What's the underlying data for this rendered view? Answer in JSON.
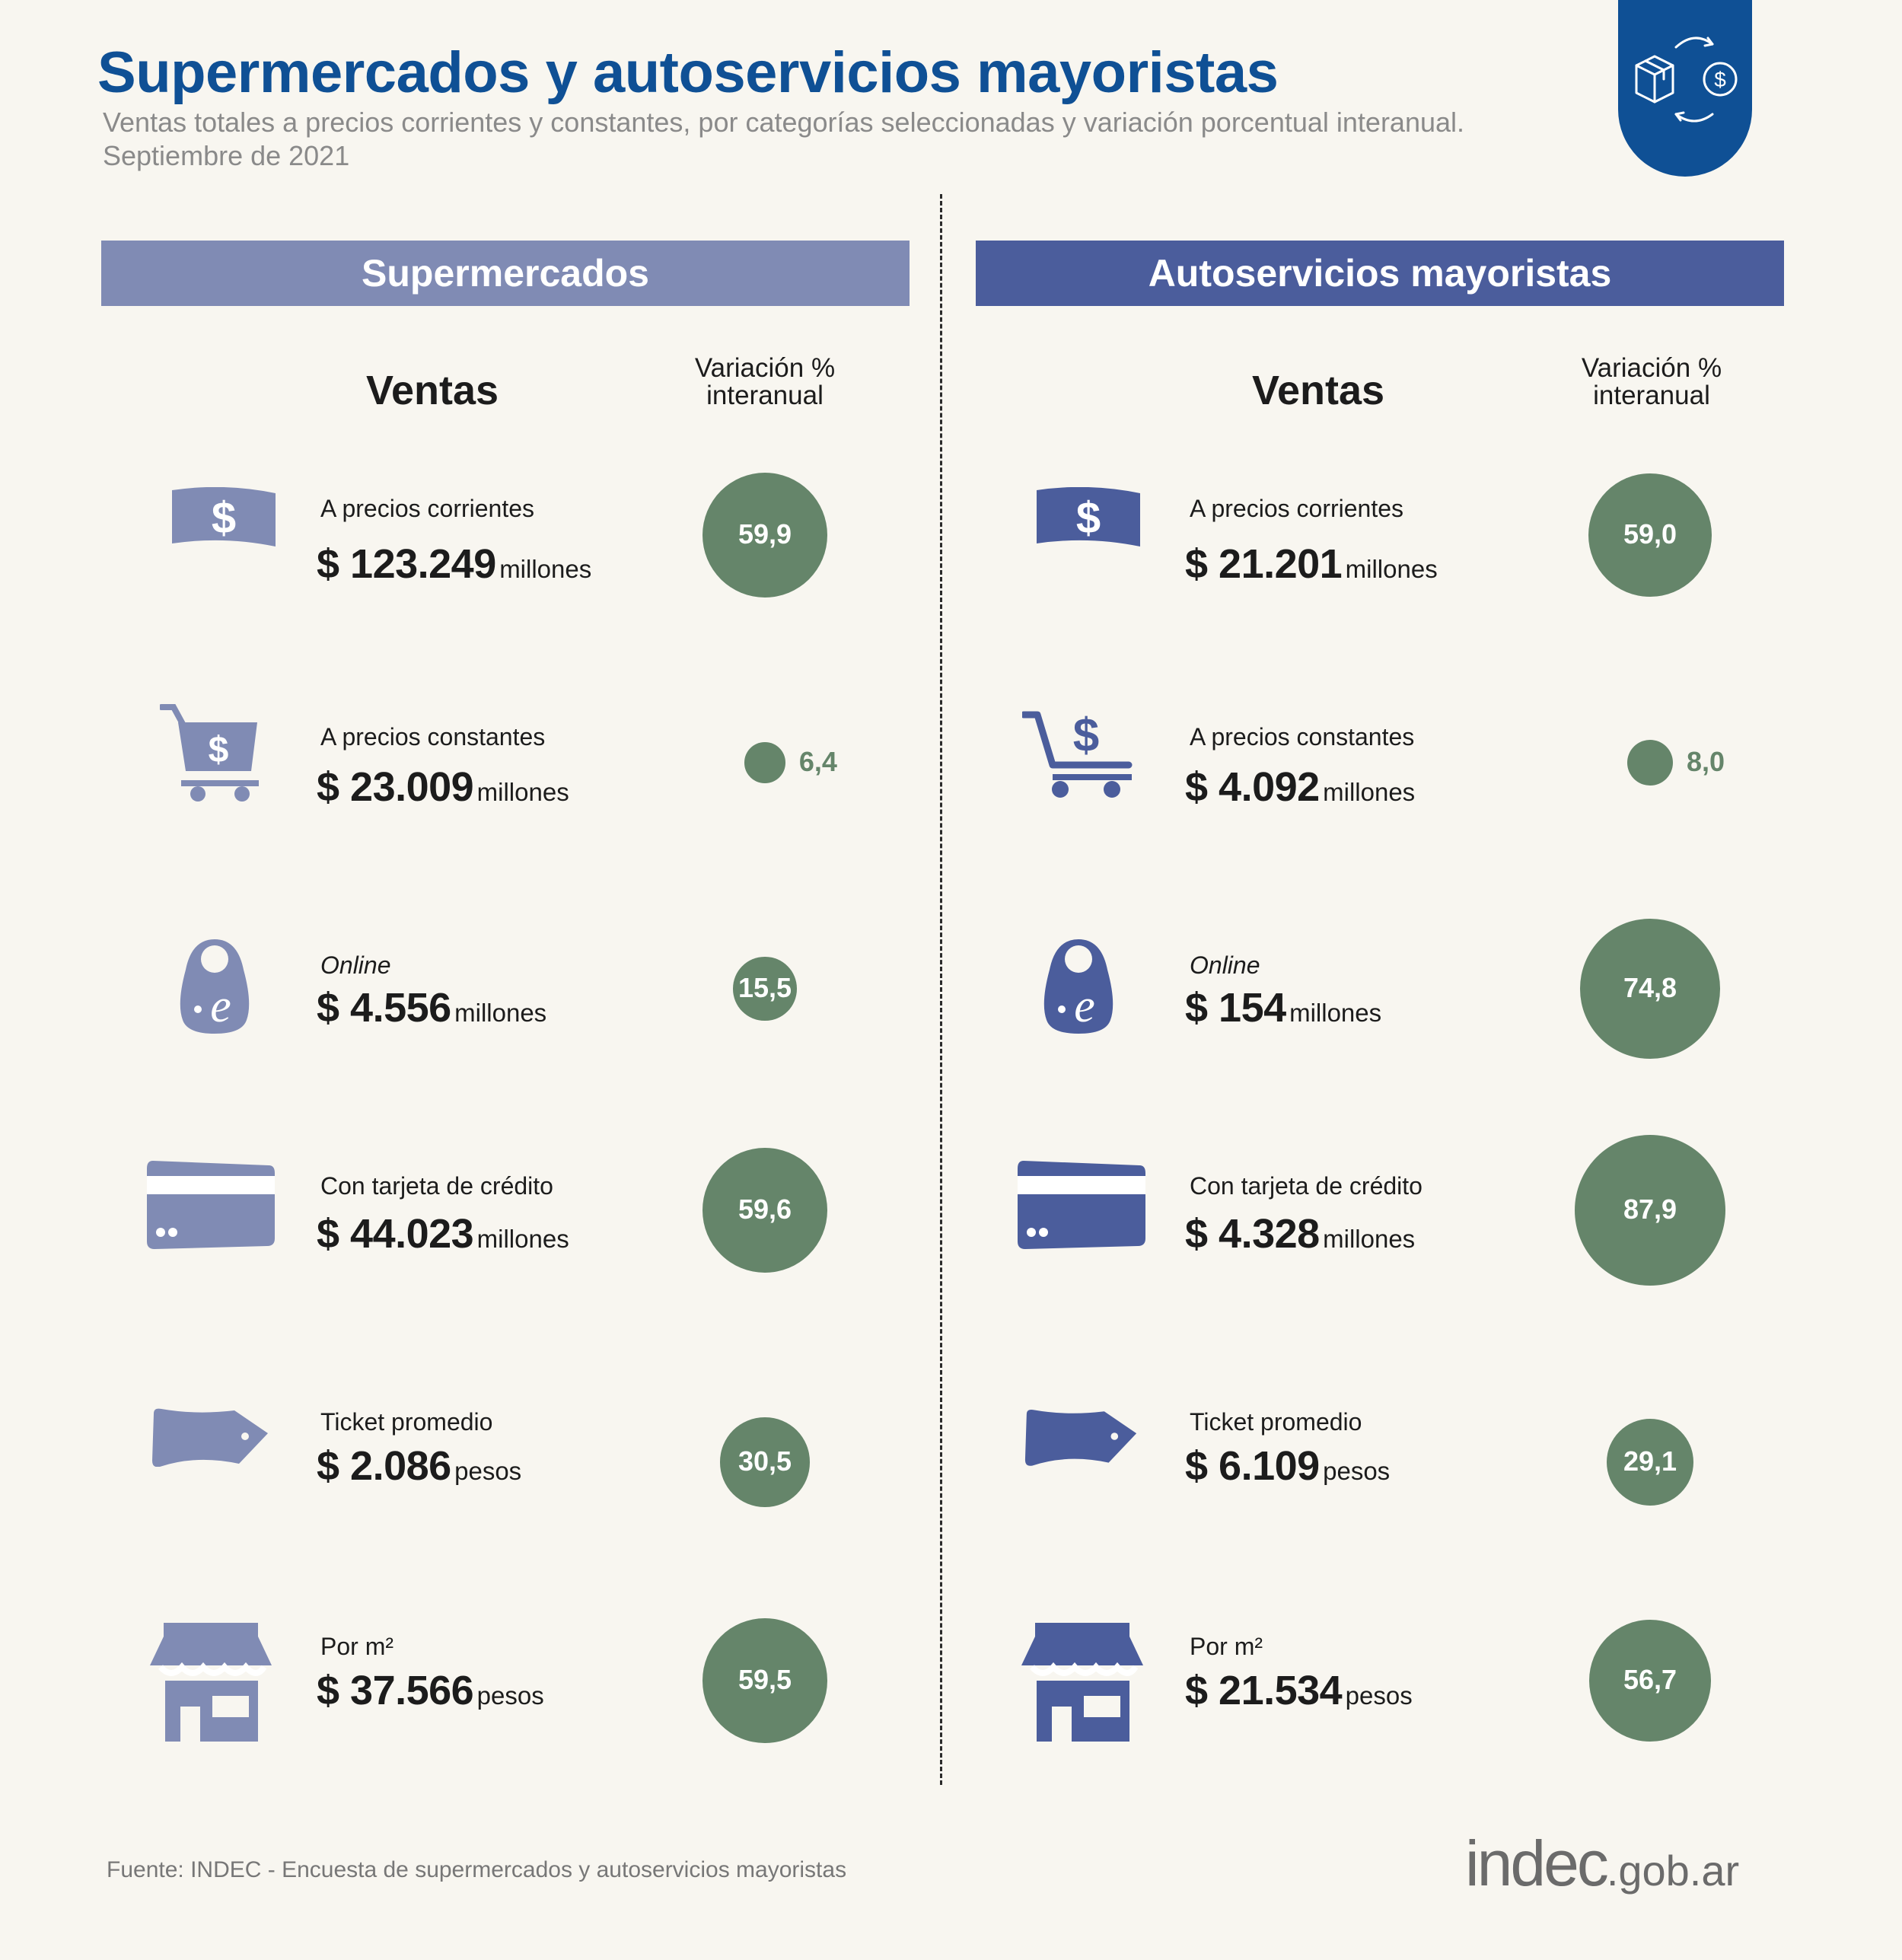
{
  "header": {
    "title": "Supermercados y autoservicios mayoristas",
    "subtitle": "Ventas totales a precios corrientes y constantes, por categorías seleccionadas y variación porcentual interanual.",
    "period": "Septiembre de 2021"
  },
  "columns": {
    "ventas": "Ventas",
    "variacion_line1": "Variación %",
    "variacion_line2": "interanual"
  },
  "colors": {
    "title": "#0f5095",
    "supermercados": "#808bb4",
    "autoservicios": "#4b5d9c",
    "bubble": "#65856a"
  },
  "chart_data": [
    {
      "type": "bubble",
      "title": "Supermercados",
      "rows": [
        {
          "category": "A precios corrientes",
          "amount": "$ 123.249",
          "unit": "millones",
          "variation": 59.9,
          "variation_label": "59,9",
          "icon": "banknote-icon"
        },
        {
          "category": "A precios constantes",
          "amount": "$ 23.009",
          "unit": "millones",
          "variation": 6.4,
          "variation_label": "6,4",
          "icon": "shopping-cart-icon"
        },
        {
          "category": "Online",
          "amount": "$ 4.556",
          "unit": "millones",
          "variation": 15.5,
          "variation_label": "15,5",
          "icon": "online-bag-icon"
        },
        {
          "category": "Con tarjeta de crédito",
          "amount": "$ 44.023",
          "unit": "millones",
          "variation": 59.6,
          "variation_label": "59,6",
          "icon": "credit-card-icon"
        },
        {
          "category": "Ticket promedio",
          "amount": "$ 2.086",
          "unit": "pesos",
          "variation": 30.5,
          "variation_label": "30,5",
          "icon": "price-tag-icon"
        },
        {
          "category": "Por m²",
          "amount": "$ 37.566",
          "unit": "pesos",
          "variation": 59.5,
          "variation_label": "59,5",
          "icon": "storefront-icon"
        }
      ]
    },
    {
      "type": "bubble",
      "title": "Autoservicios mayoristas",
      "rows": [
        {
          "category": "A precios corrientes",
          "amount": "$ 21.201",
          "unit": "millones",
          "variation": 59.0,
          "variation_label": "59,0",
          "icon": "banknote-icon"
        },
        {
          "category": "A precios constantes",
          "amount": "$ 4.092",
          "unit": "millones",
          "variation": 8.0,
          "variation_label": "8,0",
          "icon": "shopping-cart-icon"
        },
        {
          "category": "Online",
          "amount": "$ 154",
          "unit": "millones",
          "variation": 74.8,
          "variation_label": "74,8",
          "icon": "online-bag-icon"
        },
        {
          "category": "Con tarjeta de crédito",
          "amount": "$ 4.328",
          "unit": "millones",
          "variation": 87.9,
          "variation_label": "87,9",
          "icon": "credit-card-icon"
        },
        {
          "category": "Ticket promedio",
          "amount": "$ 6.109",
          "unit": "pesos",
          "variation": 29.1,
          "variation_label": "29,1",
          "icon": "price-tag-icon"
        },
        {
          "category": "Por m²",
          "amount": "$ 21.534",
          "unit": "pesos",
          "variation": 56.7,
          "variation_label": "56,7",
          "icon": "storefront-icon"
        }
      ]
    }
  ],
  "footer": {
    "source": "Fuente: INDEC - Encuesta de supermercados y autoservicios mayoristas",
    "logo_main": "indec",
    "logo_domain": ".gob.ar"
  }
}
